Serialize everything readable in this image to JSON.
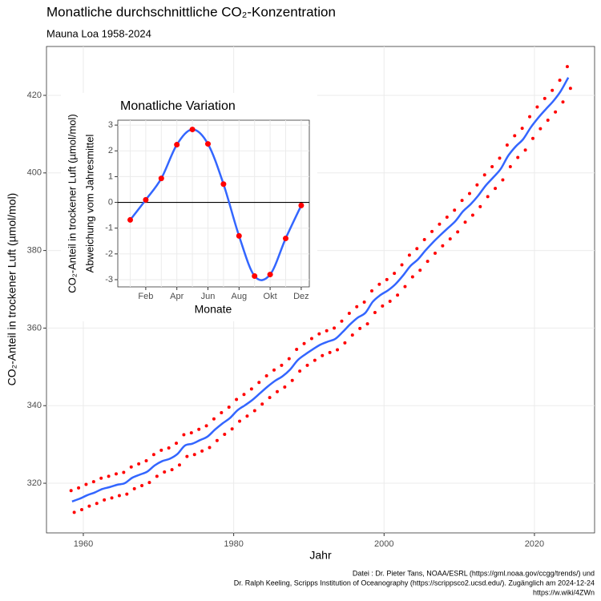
{
  "chart_data": [
    {
      "type": "scatter",
      "title": "Monatliche durchschnittliche CO₂-Konzentration",
      "subtitle": "Mauna Loa 1958-2024",
      "x_label": "Jahr",
      "y_label": "CO₂-Anteil in trockener Luft (µmol/mol)",
      "xlim": [
        1955.1,
        2028
      ],
      "ylim": [
        307.2,
        432.6
      ],
      "xticks": [
        1960,
        1980,
        2000,
        2020
      ],
      "yticks": [
        320,
        340,
        360,
        380,
        400,
        420
      ],
      "grid": true,
      "series": [
        {
          "type": "scatter",
          "color": "#ff0000",
          "x": [
            1958.37,
            1958.79,
            1959.37,
            1959.79,
            1960.37,
            1960.79,
            1961.37,
            1961.79,
            1962.37,
            1962.79,
            1963.37,
            1963.79,
            1964.37,
            1964.79,
            1965.37,
            1965.79,
            1966.37,
            1966.79,
            1967.37,
            1967.79,
            1968.37,
            1968.79,
            1969.37,
            1969.79,
            1970.37,
            1970.79,
            1971.37,
            1971.79,
            1972.37,
            1972.79,
            1973.37,
            1973.79,
            1974.37,
            1974.79,
            1975.37,
            1975.79,
            1976.37,
            1976.79,
            1977.37,
            1977.79,
            1978.37,
            1978.79,
            1979.37,
            1979.79,
            1980.37,
            1980.79,
            1981.37,
            1981.79,
            1982.37,
            1982.79,
            1983.37,
            1983.79,
            1984.37,
            1984.79,
            1985.37,
            1985.79,
            1986.37,
            1986.79,
            1987.37,
            1987.79,
            1988.37,
            1988.79,
            1989.37,
            1989.79,
            1990.37,
            1990.79,
            1991.37,
            1991.79,
            1992.37,
            1992.79,
            1993.37,
            1993.79,
            1994.37,
            1994.79,
            1995.37,
            1995.79,
            1996.37,
            1996.79,
            1997.37,
            1997.79,
            1998.37,
            1998.79,
            1999.37,
            1999.79,
            2000.37,
            2000.79,
            2001.37,
            2001.79,
            2002.37,
            2002.79,
            2003.37,
            2003.79,
            2004.37,
            2004.79,
            2005.37,
            2005.79,
            2006.37,
            2006.79,
            2007.37,
            2007.79,
            2008.37,
            2008.79,
            2009.37,
            2009.79,
            2010.37,
            2010.79,
            2011.37,
            2011.79,
            2012.37,
            2012.79,
            2013.37,
            2013.79,
            2014.37,
            2014.79,
            2015.37,
            2015.79,
            2016.37,
            2016.79,
            2017.37,
            2017.79,
            2018.37,
            2018.79,
            2019.37,
            2019.79,
            2020.37,
            2020.79,
            2021.37,
            2021.79,
            2022.37,
            2022.79,
            2023.37,
            2023.79,
            2024.37,
            2024.79
          ],
          "values": [
            318.1,
            312.5,
            318.8,
            313.2,
            319.7,
            314.1,
            320.4,
            314.8,
            321.3,
            315.7,
            321.8,
            316.2,
            322.4,
            316.8,
            322.8,
            317.2,
            324.2,
            318.6,
            325.0,
            319.4,
            325.8,
            320.2,
            327.4,
            321.8,
            328.5,
            322.9,
            329.1,
            323.5,
            330.3,
            324.7,
            332.5,
            326.9,
            333.0,
            327.4,
            333.9,
            328.3,
            334.8,
            329.2,
            336.6,
            331.0,
            338.2,
            332.6,
            339.6,
            334.0,
            341.6,
            336.0,
            342.9,
            337.3,
            344.3,
            338.7,
            346.0,
            340.4,
            347.7,
            342.1,
            349.2,
            343.6,
            350.4,
            344.8,
            352.1,
            346.5,
            354.5,
            348.9,
            356.0,
            350.4,
            357.3,
            351.7,
            358.5,
            352.9,
            359.3,
            353.7,
            360.0,
            354.4,
            361.8,
            356.2,
            363.8,
            358.2,
            365.5,
            359.9,
            366.7,
            361.1,
            369.6,
            364.0,
            371.3,
            365.7,
            372.5,
            366.9,
            374.1,
            368.5,
            376.3,
            370.7,
            378.8,
            373.2,
            380.5,
            374.9,
            382.8,
            377.2,
            384.9,
            379.3,
            386.8,
            381.2,
            388.6,
            383.0,
            390.4,
            384.8,
            392.9,
            387.3,
            394.7,
            389.1,
            396.9,
            391.3,
            399.5,
            393.9,
            401.6,
            396.0,
            403.8,
            398.2,
            407.2,
            401.6,
            409.6,
            404.0,
            411.5,
            405.9,
            414.5,
            408.9,
            417.0,
            411.4,
            419.2,
            413.6,
            421.3,
            415.7,
            423.9,
            418.3,
            427.4,
            421.8
          ]
        },
        {
          "type": "line",
          "color": "#3366ff",
          "x": [
            1958.5,
            1959.5,
            1960.5,
            1961.5,
            1962.5,
            1963.5,
            1964.5,
            1965.5,
            1966.5,
            1967.5,
            1968.5,
            1969.5,
            1970.5,
            1971.5,
            1972.5,
            1973.5,
            1974.5,
            1975.5,
            1976.5,
            1977.5,
            1978.5,
            1979.5,
            1980.5,
            1981.5,
            1982.5,
            1983.5,
            1984.5,
            1985.5,
            1986.5,
            1987.5,
            1988.5,
            1989.5,
            1990.5,
            1991.5,
            1992.5,
            1993.5,
            1994.5,
            1995.5,
            1996.5,
            1997.5,
            1998.5,
            1999.5,
            2000.5,
            2001.5,
            2002.5,
            2003.5,
            2004.5,
            2005.5,
            2006.5,
            2007.5,
            2008.5,
            2009.5,
            2010.5,
            2011.5,
            2012.5,
            2013.5,
            2014.5,
            2015.5,
            2016.5,
            2017.5,
            2018.5,
            2019.5,
            2020.5,
            2021.5,
            2022.5,
            2023.5,
            2024.5
          ],
          "values": [
            315.3,
            316.0,
            316.9,
            317.6,
            318.5,
            319.0,
            319.6,
            320.0,
            321.4,
            322.2,
            323.0,
            324.6,
            325.7,
            326.3,
            327.5,
            329.7,
            330.2,
            331.1,
            332.0,
            333.8,
            335.4,
            336.8,
            338.8,
            340.1,
            341.5,
            343.2,
            344.9,
            346.4,
            347.6,
            349.3,
            351.7,
            353.2,
            354.5,
            355.7,
            356.5,
            357.2,
            359.0,
            361.0,
            362.7,
            363.9,
            366.8,
            368.5,
            369.7,
            371.3,
            373.5,
            376.0,
            377.7,
            380.0,
            382.1,
            384.0,
            385.8,
            387.6,
            390.1,
            391.9,
            394.1,
            396.7,
            398.8,
            401.0,
            404.4,
            406.8,
            408.7,
            411.7,
            414.2,
            416.4,
            418.5,
            421.1,
            424.6
          ]
        }
      ]
    },
    {
      "type": "scatter",
      "title": "Monatliche Variation",
      "x_label": "Monate",
      "y_label": [
        "CO₂-Anteil in trockener Luft (µmol/mol)",
        "Abweichung vom Jahresmittel"
      ],
      "categories": [
        null,
        "Feb",
        null,
        "Apr",
        null,
        "Jun",
        null,
        "Aug",
        null,
        "Okt",
        null,
        "Dez"
      ],
      "values": [
        -0.68,
        0.1,
        0.93,
        2.24,
        2.83,
        2.27,
        0.71,
        -1.3,
        -2.86,
        -2.8,
        -1.4,
        -0.12
      ],
      "color": "#ff0000",
      "line_color": "#3366ff",
      "ylim": [
        -3.28,
        3.19
      ],
      "yticks": [
        -3,
        -2,
        -1,
        0,
        1,
        2,
        3
      ],
      "hline": 0,
      "grid": true
    }
  ],
  "caption": [
    "Datei : Dr. Pieter Tans, NOAA/ESRL (https://gml.noaa.gov/ccgg/trends/) und",
    "Dr. Ralph Keeling, Scripps Institution of Oceanography (https://scrippsco2.ucsd.edu/). Zugänglich am 2024-12-24",
    "https://w.wiki/4ZWn"
  ]
}
